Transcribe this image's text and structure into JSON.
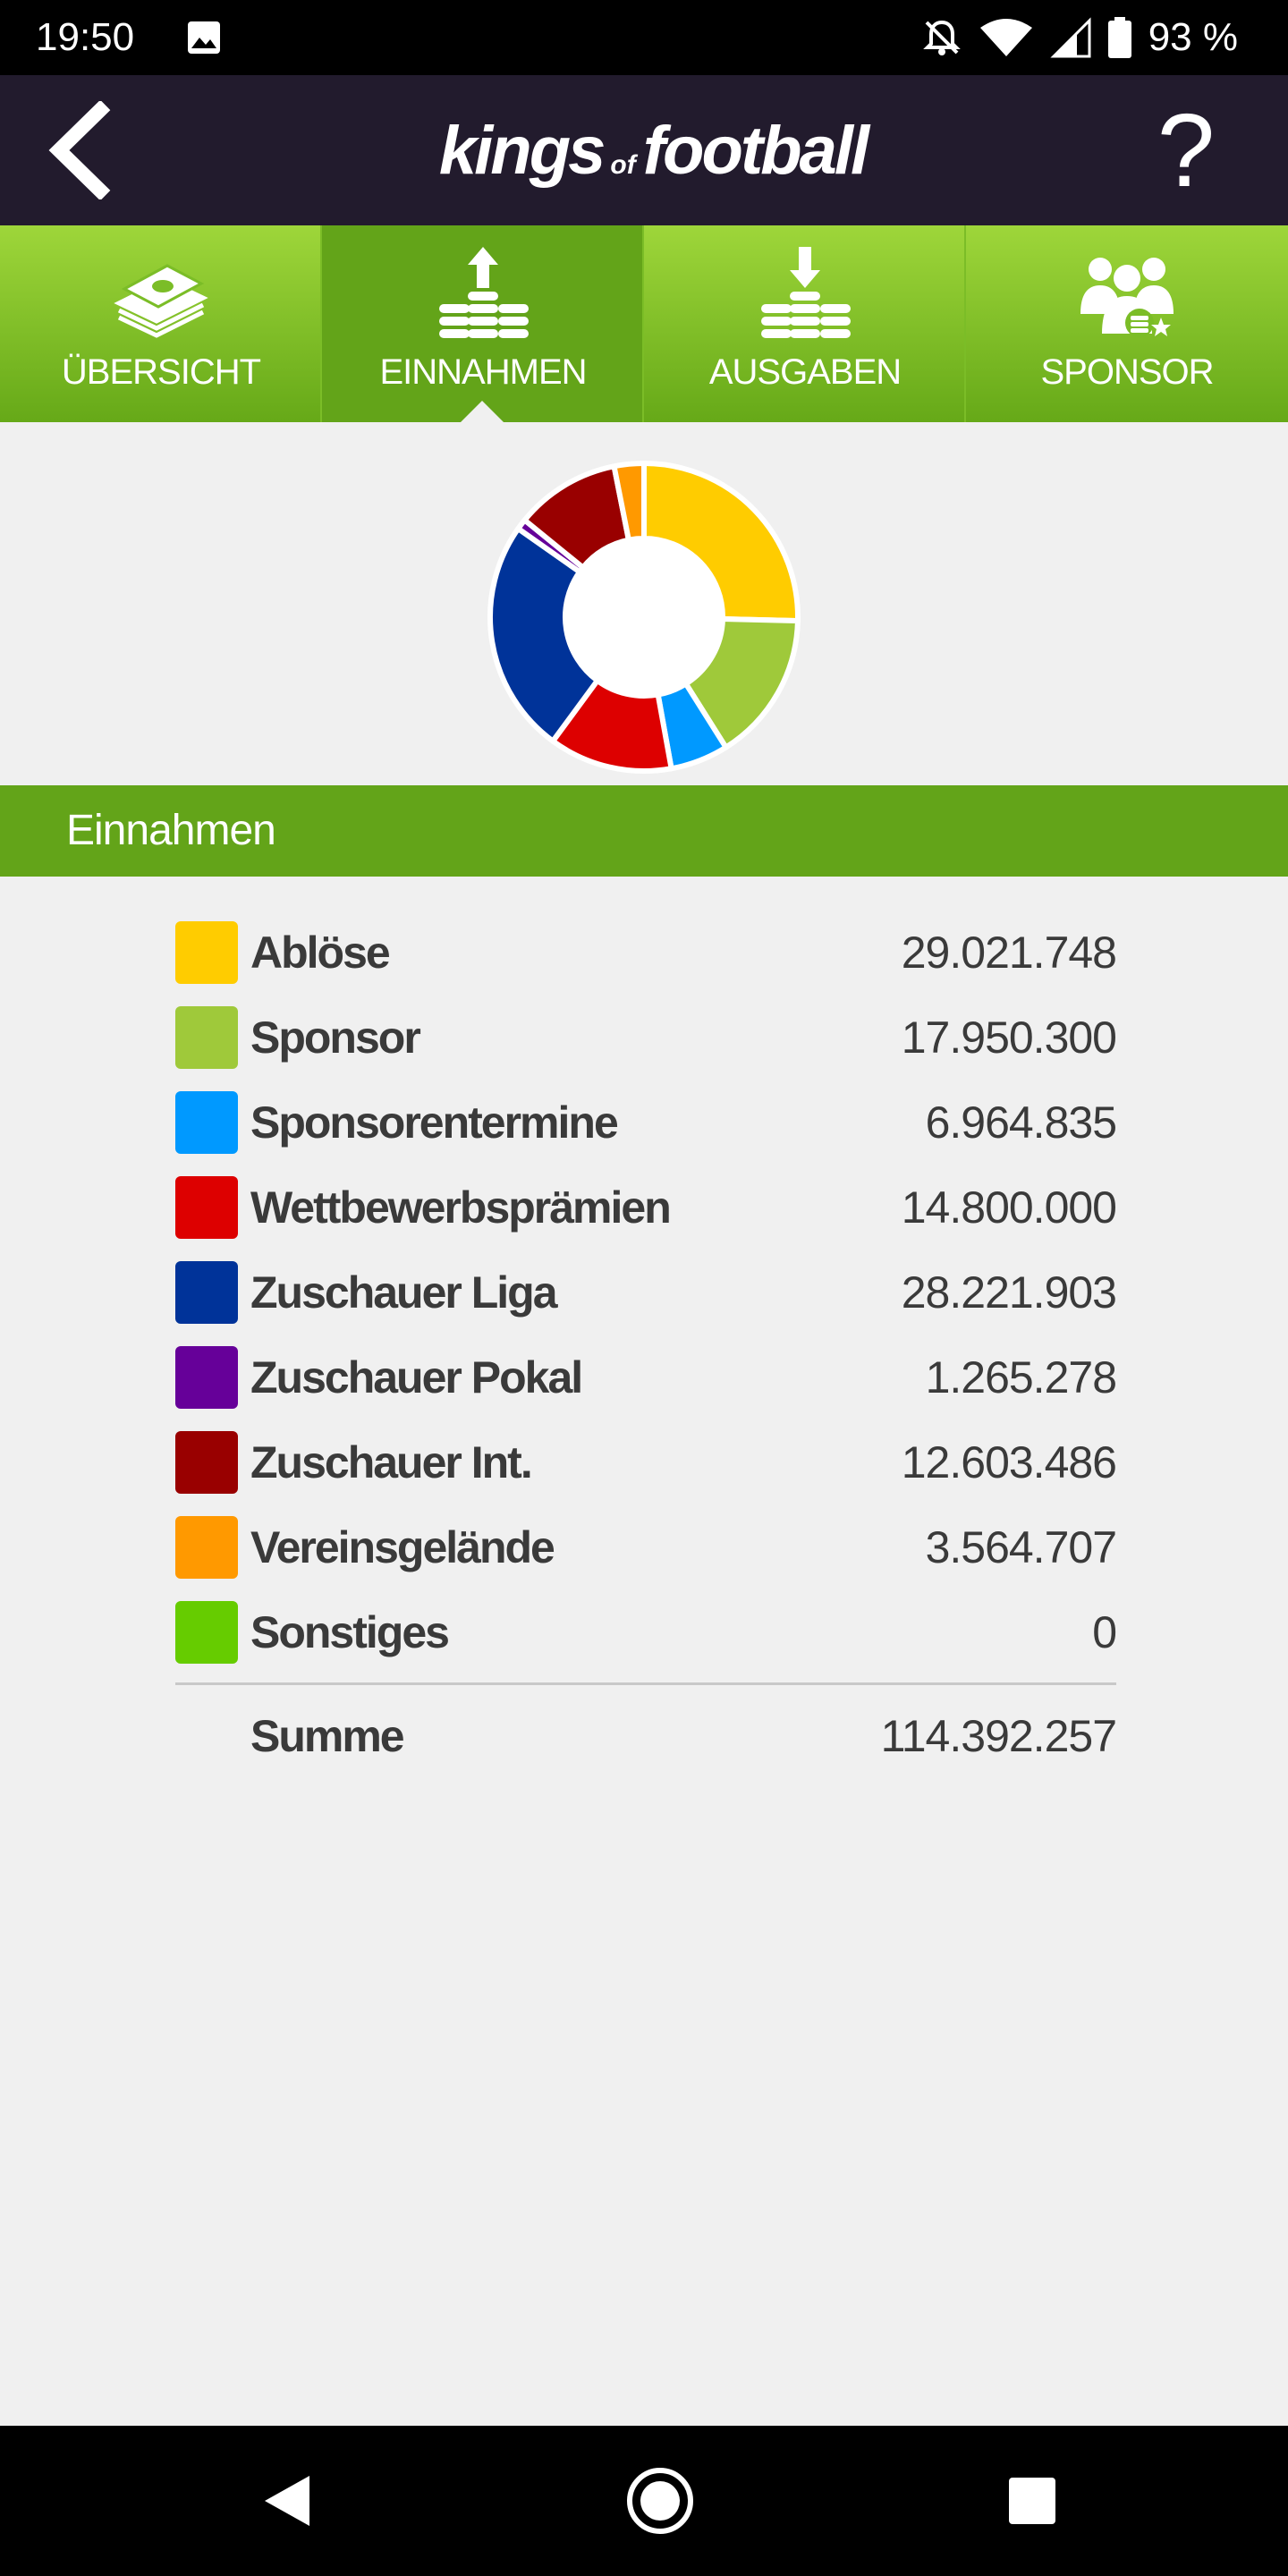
{
  "status_bar": {
    "time": "19:50",
    "battery_text": "93 %",
    "icons": [
      "image-icon",
      "notifications-off-icon",
      "wifi-icon",
      "signal-icon",
      "battery-icon"
    ]
  },
  "header": {
    "logo_kings": "kings",
    "logo_of": "of",
    "logo_football": "football",
    "help_label": "?"
  },
  "tabs": [
    {
      "label": "ÜBERSICHT",
      "icon": "money-stack-icon",
      "active": false
    },
    {
      "label": "EINNAHMEN",
      "icon": "coins-up-icon",
      "active": true
    },
    {
      "label": "AUSGABEN",
      "icon": "coins-down-icon",
      "active": false
    },
    {
      "label": "SPONSOR",
      "icon": "sponsor-people-icon",
      "active": false
    }
  ],
  "section": {
    "title": "Einnahmen"
  },
  "chart_data": {
    "type": "pie",
    "categories": [
      "Ablöse",
      "Sponsor",
      "Sponsorentermine",
      "Wettbewerbsprämien",
      "Zuschauer Liga",
      "Zuschauer Pokal",
      "Zuschauer Int.",
      "Vereinsgelände",
      "Sonstiges"
    ],
    "values": [
      29021748,
      17950300,
      6964835,
      14800000,
      28221903,
      1265278,
      12603486,
      3564707,
      0
    ],
    "colors": [
      "#ffcc00",
      "#9fc93a",
      "#0099ff",
      "#dd0000",
      "#003399",
      "#660099",
      "#990000",
      "#ff9900",
      "#66cc00"
    ]
  },
  "legend": {
    "items": [
      {
        "label": "Ablöse",
        "value": "29.021.748",
        "color": "#ffcc00"
      },
      {
        "label": "Sponsor",
        "value": "17.950.300",
        "color": "#9fc93a"
      },
      {
        "label": "Sponsorentermine",
        "value": "6.964.835",
        "color": "#0099ff"
      },
      {
        "label": "Wettbewerbsprämien",
        "value": "14.800.000",
        "color": "#dd0000"
      },
      {
        "label": "Zuschauer Liga",
        "value": "28.221.903",
        "color": "#003399"
      },
      {
        "label": "Zuschauer Pokal",
        "value": "1.265.278",
        "color": "#660099"
      },
      {
        "label": "Zuschauer Int.",
        "value": "12.603.486",
        "color": "#990000"
      },
      {
        "label": "Vereinsgelände",
        "value": "3.564.707",
        "color": "#ff9900"
      },
      {
        "label": "Sonstiges",
        "value": "0",
        "color": "#66cc00"
      }
    ],
    "sum_label": "Summe",
    "sum_value": "114.392.257"
  },
  "nav": {
    "icons": [
      "nav-back-icon",
      "nav-home-icon",
      "nav-recents-icon"
    ]
  }
}
